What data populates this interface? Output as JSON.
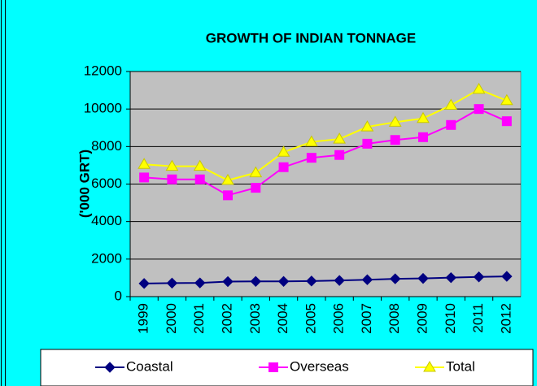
{
  "chart_data": {
    "type": "line",
    "title": "GROWTH OF INDIAN TONNAGE",
    "y_label": "('000 GRT)",
    "categories": [
      "1999",
      "2000",
      "2001",
      "2002",
      "2003",
      "2004",
      "2005",
      "2006",
      "2007",
      "2008",
      "2009",
      "2010",
      "2011",
      "2012"
    ],
    "series": [
      {
        "name": "Coastal",
        "color": "#000080",
        "marker": "diamond",
        "values": [
          700,
          720,
          730,
          800,
          810,
          810,
          830,
          860,
          900,
          950,
          970,
          1010,
          1050,
          1080
        ]
      },
      {
        "name": "Overseas",
        "color": "#FF00FF",
        "marker": "square",
        "values": [
          6350,
          6250,
          6250,
          5400,
          5800,
          6900,
          7400,
          7550,
          8150,
          8350,
          8500,
          9150,
          10000,
          9350
        ]
      },
      {
        "name": "Total",
        "color": "#FFFF00",
        "marker": "triangle",
        "values": [
          7050,
          6950,
          6950,
          6200,
          6600,
          7700,
          8250,
          8400,
          9050,
          9300,
          9500,
          10200,
          11050,
          10450
        ]
      }
    ],
    "ylim": [
      0,
      12000
    ],
    "yticks": [
      0,
      2000,
      4000,
      6000,
      8000,
      10000,
      12000
    ],
    "grid": true,
    "legend": "bottom"
  }
}
